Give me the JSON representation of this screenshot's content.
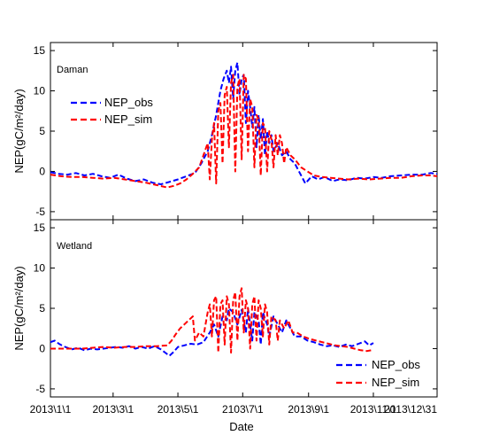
{
  "chart_data": [
    {
      "type": "line",
      "panel_label": "Daman",
      "ylabel": "NEP(gC/m²/day)",
      "ylim": [
        -6,
        16
      ],
      "yticks": [
        -5,
        0,
        5,
        10,
        15
      ],
      "legend": {
        "placement": "top-left"
      },
      "series": [
        {
          "name": "NEP_obs",
          "color": "#0000ff",
          "points": [
            [
              0,
              -0.1
            ],
            [
              8,
              -0.3
            ],
            [
              16,
              -0.4
            ],
            [
              24,
              -0.2
            ],
            [
              32,
              -0.5
            ],
            [
              40,
              -0.3
            ],
            [
              48,
              -0.6
            ],
            [
              56,
              -0.8
            ],
            [
              64,
              -0.4
            ],
            [
              72,
              -0.9
            ],
            [
              80,
              -1.2
            ],
            [
              88,
              -1.0
            ],
            [
              96,
              -1.4
            ],
            [
              104,
              -1.6
            ],
            [
              112,
              -1.3
            ],
            [
              120,
              -1.0
            ],
            [
              128,
              -0.6
            ],
            [
              136,
              -0.2
            ],
            [
              142,
              1.0
            ],
            [
              148,
              2.5
            ],
            [
              152,
              4.5
            ],
            [
              156,
              7.0
            ],
            [
              160,
              10.0
            ],
            [
              163,
              11.5
            ],
            [
              166,
              12.5
            ],
            [
              168,
              11.0
            ],
            [
              170,
              13.0
            ],
            [
              172,
              9.0
            ],
            [
              174,
              12.5
            ],
            [
              176,
              13.5
            ],
            [
              178,
              9.5
            ],
            [
              180,
              11.5
            ],
            [
              182,
              12.0
            ],
            [
              184,
              6.0
            ],
            [
              186,
              10.0
            ],
            [
              188,
              8.0
            ],
            [
              190,
              5.5
            ],
            [
              192,
              8.0
            ],
            [
              194,
              3.0
            ],
            [
              196,
              7.0
            ],
            [
              198,
              4.0
            ],
            [
              200,
              6.5
            ],
            [
              202,
              2.0
            ],
            [
              204,
              5.0
            ],
            [
              206,
              3.5
            ],
            [
              208,
              4.5
            ],
            [
              210,
              2.5
            ],
            [
              214,
              3.5
            ],
            [
              218,
              2.0
            ],
            [
              222,
              2.5
            ],
            [
              226,
              1.5
            ],
            [
              230,
              1.0
            ],
            [
              236,
              -0.5
            ],
            [
              240,
              -1.5
            ],
            [
              246,
              -0.6
            ],
            [
              252,
              -1.0
            ],
            [
              258,
              -0.7
            ],
            [
              266,
              -1.2
            ],
            [
              272,
              -1.0
            ],
            [
              280,
              -1.1
            ],
            [
              288,
              -0.8
            ],
            [
              296,
              -0.9
            ],
            [
              304,
              -0.7
            ],
            [
              312,
              -0.8
            ],
            [
              320,
              -0.6
            ],
            [
              330,
              -0.5
            ],
            [
              340,
              -0.4
            ],
            [
              350,
              -0.4
            ],
            [
              358,
              -0.2
            ],
            [
              364,
              -0.3
            ]
          ]
        },
        {
          "name": "NEP_sim",
          "color": "#ff0000",
          "points": [
            [
              0,
              -0.4
            ],
            [
              10,
              -0.6
            ],
            [
              20,
              -0.7
            ],
            [
              30,
              -0.7
            ],
            [
              40,
              -0.8
            ],
            [
              50,
              -0.9
            ],
            [
              60,
              -0.8
            ],
            [
              70,
              -1.0
            ],
            [
              80,
              -1.2
            ],
            [
              90,
              -1.4
            ],
            [
              100,
              -1.7
            ],
            [
              110,
              -2.0
            ],
            [
              116,
              -1.8
            ],
            [
              122,
              -1.5
            ],
            [
              128,
              -1.0
            ],
            [
              134,
              -0.3
            ],
            [
              140,
              0.5
            ],
            [
              144,
              2.0
            ],
            [
              148,
              3.5
            ],
            [
              150,
              -1.0
            ],
            [
              152,
              4.0
            ],
            [
              154,
              6.0
            ],
            [
              156,
              -1.5
            ],
            [
              158,
              7.5
            ],
            [
              160,
              8.5
            ],
            [
              162,
              1.0
            ],
            [
              164,
              9.5
            ],
            [
              166,
              10.5
            ],
            [
              168,
              3.0
            ],
            [
              170,
              11.0
            ],
            [
              172,
              12.0
            ],
            [
              174,
              0.0
            ],
            [
              176,
              10.5
            ],
            [
              178,
              11.5
            ],
            [
              180,
              1.5
            ],
            [
              182,
              12.0
            ],
            [
              184,
              11.5
            ],
            [
              186,
              2.5
            ],
            [
              188,
              9.0
            ],
            [
              190,
              8.0
            ],
            [
              192,
              0.5
            ],
            [
              194,
              7.0
            ],
            [
              196,
              6.5
            ],
            [
              198,
              -0.5
            ],
            [
              200,
              6.0
            ],
            [
              202,
              5.5
            ],
            [
              204,
              0.0
            ],
            [
              206,
              5.0
            ],
            [
              208,
              4.0
            ],
            [
              210,
              0.5
            ],
            [
              212,
              4.5
            ],
            [
              214,
              2.0
            ],
            [
              216,
              4.5
            ],
            [
              218,
              3.5
            ],
            [
              220,
              1.0
            ],
            [
              222,
              3.0
            ],
            [
              226,
              2.0
            ],
            [
              230,
              1.5
            ],
            [
              236,
              0.5
            ],
            [
              242,
              0.0
            ],
            [
              248,
              -0.5
            ],
            [
              256,
              -0.7
            ],
            [
              264,
              -0.8
            ],
            [
              272,
              -0.9
            ],
            [
              280,
              -1.0
            ],
            [
              290,
              -0.9
            ],
            [
              300,
              -1.0
            ],
            [
              310,
              -0.9
            ],
            [
              320,
              -0.8
            ],
            [
              330,
              -0.8
            ],
            [
              340,
              -0.6
            ],
            [
              350,
              -0.5
            ],
            [
              358,
              -0.5
            ],
            [
              364,
              -0.6
            ]
          ]
        }
      ]
    },
    {
      "type": "line",
      "panel_label": "Wetland",
      "ylabel": "NEP(gC/m²/day)",
      "ylim": [
        -6,
        16
      ],
      "yticks": [
        -5,
        0,
        5,
        10,
        15
      ],
      "xlabel": "Date",
      "xticks": [
        "2013\\1\\1",
        "2013\\3\\1",
        "2013\\5\\1",
        "2103\\7\\1",
        "2013\\9\\1",
        "2013\\11\\1",
        "2013\\12\\31"
      ],
      "xtick_days": [
        0,
        59,
        120,
        181,
        243,
        304,
        364
      ],
      "legend": {
        "placement": "bottom-right"
      },
      "series": [
        {
          "name": "NEP_obs",
          "color": "#0000ff",
          "points": [
            [
              0,
              0.8
            ],
            [
              4,
              1.0
            ],
            [
              8,
              0.6
            ],
            [
              12,
              0.3
            ],
            [
              16,
              0.1
            ],
            [
              20,
              -0.1
            ],
            [
              26,
              0.1
            ],
            [
              32,
              -0.2
            ],
            [
              38,
              0.0
            ],
            [
              44,
              -0.1
            ],
            [
              50,
              0.0
            ],
            [
              56,
              0.1
            ],
            [
              62,
              0.2
            ],
            [
              68,
              0.1
            ],
            [
              74,
              0.3
            ],
            [
              80,
              0.0
            ],
            [
              86,
              0.2
            ],
            [
              92,
              0.0
            ],
            [
              98,
              0.3
            ],
            [
              104,
              -0.1
            ],
            [
              108,
              -0.5
            ],
            [
              112,
              -0.9
            ],
            [
              116,
              -0.4
            ],
            [
              120,
              0.2
            ],
            [
              126,
              0.4
            ],
            [
              132,
              0.6
            ],
            [
              138,
              0.5
            ],
            [
              144,
              0.8
            ],
            [
              150,
              2.0
            ],
            [
              154,
              3.0
            ],
            [
              158,
              1.5
            ],
            [
              162,
              4.0
            ],
            [
              166,
              3.5
            ],
            [
              168,
              5.0
            ],
            [
              172,
              4.5
            ],
            [
              176,
              3.0
            ],
            [
              180,
              4.8
            ],
            [
              184,
              2.0
            ],
            [
              186,
              5.0
            ],
            [
              190,
              1.0
            ],
            [
              192,
              4.5
            ],
            [
              196,
              3.5
            ],
            [
              198,
              0.5
            ],
            [
              200,
              4.5
            ],
            [
              204,
              3.0
            ],
            [
              206,
              1.5
            ],
            [
              210,
              4.0
            ],
            [
              214,
              3.0
            ],
            [
              218,
              2.0
            ],
            [
              222,
              3.5
            ],
            [
              226,
              2.5
            ],
            [
              230,
              1.5
            ],
            [
              236,
              1.5
            ],
            [
              242,
              1.0
            ],
            [
              248,
              0.8
            ],
            [
              254,
              0.5
            ],
            [
              260,
              0.3
            ],
            [
              266,
              0.4
            ],
            [
              272,
              0.2
            ],
            [
              278,
              0.5
            ],
            [
              284,
              0.3
            ],
            [
              290,
              0.6
            ],
            [
              296,
              0.9
            ],
            [
              300,
              0.4
            ],
            [
              304,
              0.7
            ]
          ]
        },
        {
          "name": "NEP_sim",
          "color": "#ff0000",
          "points": [
            [
              0,
              0.0
            ],
            [
              10,
              0.0
            ],
            [
              20,
              0.0
            ],
            [
              30,
              0.0
            ],
            [
              40,
              0.1
            ],
            [
              50,
              0.2
            ],
            [
              60,
              0.1
            ],
            [
              70,
              0.2
            ],
            [
              80,
              0.2
            ],
            [
              90,
              0.3
            ],
            [
              100,
              0.3
            ],
            [
              110,
              0.4
            ],
            [
              114,
              1.0
            ],
            [
              118,
              1.8
            ],
            [
              122,
              2.5
            ],
            [
              126,
              3.0
            ],
            [
              130,
              3.5
            ],
            [
              134,
              4.0
            ],
            [
              136,
              1.0
            ],
            [
              140,
              2.0
            ],
            [
              144,
              1.5
            ],
            [
              148,
              4.5
            ],
            [
              150,
              5.5
            ],
            [
              152,
              1.5
            ],
            [
              154,
              6.0
            ],
            [
              156,
              6.5
            ],
            [
              158,
              -0.5
            ],
            [
              160,
              5.5
            ],
            [
              162,
              6.0
            ],
            [
              164,
              0.5
            ],
            [
              166,
              6.5
            ],
            [
              168,
              5.5
            ],
            [
              170,
              -0.5
            ],
            [
              172,
              6.0
            ],
            [
              174,
              7.0
            ],
            [
              176,
              1.0
            ],
            [
              178,
              6.5
            ],
            [
              180,
              7.5
            ],
            [
              182,
              2.0
            ],
            [
              184,
              6.0
            ],
            [
              186,
              5.0
            ],
            [
              188,
              0.0
            ],
            [
              190,
              5.5
            ],
            [
              192,
              6.5
            ],
            [
              194,
              1.0
            ],
            [
              196,
              6.0
            ],
            [
              198,
              5.0
            ],
            [
              200,
              1.5
            ],
            [
              202,
              5.5
            ],
            [
              204,
              4.5
            ],
            [
              206,
              0.5
            ],
            [
              208,
              4.0
            ],
            [
              212,
              3.5
            ],
            [
              214,
              1.0
            ],
            [
              216,
              3.5
            ],
            [
              220,
              2.5
            ],
            [
              224,
              3.5
            ],
            [
              228,
              2.0
            ],
            [
              232,
              2.0
            ],
            [
              238,
              1.5
            ],
            [
              244,
              1.2
            ],
            [
              250,
              1.0
            ],
            [
              256,
              0.8
            ],
            [
              262,
              0.6
            ],
            [
              268,
              0.4
            ],
            [
              274,
              0.3
            ],
            [
              280,
              0.2
            ],
            [
              286,
              0.0
            ],
            [
              292,
              -0.2
            ],
            [
              298,
              -0.3
            ],
            [
              302,
              -0.2
            ]
          ]
        }
      ]
    }
  ]
}
